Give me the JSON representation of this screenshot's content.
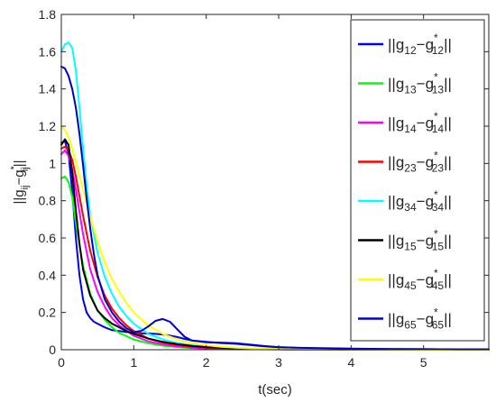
{
  "chart_data": {
    "type": "line",
    "title": "",
    "xlabel": "t(sec)",
    "ylabel": {
      "base": "||g",
      "sub1": "ij",
      "mid": "−g",
      "sup": "*",
      "sub2": "ij",
      "end": "||"
    },
    "xlim": [
      0,
      5.9
    ],
    "ylim": [
      0,
      1.8
    ],
    "xticks": [
      "0",
      "1",
      "2",
      "3",
      "4",
      "5"
    ],
    "yticks": [
      "0",
      "0.2",
      "0.4",
      "0.6",
      "0.8",
      "1",
      "1.2",
      "1.4",
      "1.6",
      "1.8"
    ],
    "grid": false,
    "legend_position": "top-right",
    "series": [
      {
        "name": "||g12−g*12||",
        "label_parts": {
          "a": "12",
          "b": "12"
        },
        "color": "#0000ff",
        "x": [
          0,
          0.05,
          0.1,
          0.15,
          0.2,
          0.25,
          0.3,
          0.35,
          0.4,
          0.45,
          0.5,
          0.6,
          0.7,
          0.8,
          0.9,
          1.0,
          1.1,
          1.2,
          1.3,
          1.4,
          1.5,
          1.6,
          1.7,
          1.8,
          2.0,
          2.2,
          2.4,
          2.6,
          2.8,
          3.0,
          3.3,
          3.6,
          4.0,
          4.5,
          5.0,
          5.5,
          5.9
        ],
        "y": [
          1.11,
          1.12,
          1.05,
          0.85,
          0.6,
          0.4,
          0.27,
          0.2,
          0.17,
          0.15,
          0.14,
          0.12,
          0.105,
          0.1,
          0.095,
          0.09,
          0.088,
          0.087,
          0.085,
          0.082,
          0.076,
          0.068,
          0.058,
          0.05,
          0.042,
          0.036,
          0.032,
          0.025,
          0.018,
          0.013,
          0.009,
          0.007,
          0.005,
          0.004,
          0.003,
          0.002,
          0.002
        ]
      },
      {
        "name": "||g13−g*13||",
        "label_parts": {
          "a": "13",
          "b": "13"
        },
        "color": "#00ff00",
        "x": [
          0,
          0.05,
          0.1,
          0.15,
          0.2,
          0.3,
          0.4,
          0.5,
          0.6,
          0.7,
          0.8,
          1.0,
          1.2,
          1.4,
          1.6,
          1.8,
          2.0,
          2.4,
          3.0,
          3.5,
          4.0,
          5.0,
          5.9
        ],
        "y": [
          0.92,
          0.93,
          0.9,
          0.82,
          0.68,
          0.45,
          0.3,
          0.21,
          0.16,
          0.12,
          0.09,
          0.055,
          0.035,
          0.022,
          0.014,
          0.009,
          0.006,
          0.003,
          0.002,
          0.001,
          0.001,
          0.0,
          0.0
        ]
      },
      {
        "name": "||g14−g*14||",
        "label_parts": {
          "a": "14",
          "b": "14"
        },
        "color": "#ff00ff",
        "x": [
          0,
          0.05,
          0.1,
          0.15,
          0.2,
          0.3,
          0.4,
          0.5,
          0.6,
          0.7,
          0.8,
          1.0,
          1.2,
          1.4,
          1.6,
          1.8,
          2.0,
          2.4,
          3.0,
          3.5,
          4.0,
          5.0,
          5.9
        ],
        "y": [
          1.05,
          1.07,
          1.04,
          0.97,
          0.86,
          0.62,
          0.43,
          0.31,
          0.23,
          0.17,
          0.13,
          0.075,
          0.045,
          0.028,
          0.018,
          0.011,
          0.007,
          0.004,
          0.002,
          0.001,
          0.001,
          0.0,
          0.0
        ]
      },
      {
        "name": "||g23−g*23||",
        "label_parts": {
          "a": "23",
          "b": "23"
        },
        "color": "#ff0000",
        "x": [
          0,
          0.05,
          0.1,
          0.15,
          0.2,
          0.3,
          0.4,
          0.5,
          0.6,
          0.7,
          0.8,
          0.9,
          1.0,
          1.2,
          1.4,
          1.6,
          1.8,
          2.0,
          2.4,
          2.8,
          3.2,
          3.6,
          4.0,
          5.0,
          5.9
        ],
        "y": [
          1.08,
          1.09,
          1.07,
          1.02,
          0.93,
          0.72,
          0.53,
          0.39,
          0.29,
          0.22,
          0.17,
          0.13,
          0.1,
          0.06,
          0.038,
          0.025,
          0.017,
          0.011,
          0.006,
          0.003,
          0.002,
          0.001,
          0.001,
          0.0,
          0.0
        ]
      },
      {
        "name": "||g34−g*34||",
        "label_parts": {
          "a": "34",
          "b": "34"
        },
        "color": "#00ffff",
        "x": [
          0,
          0.05,
          0.1,
          0.15,
          0.2,
          0.25,
          0.3,
          0.35,
          0.4,
          0.5,
          0.6,
          0.7,
          0.8,
          0.9,
          1.0,
          1.2,
          1.4,
          1.6,
          1.8,
          2.0,
          2.4,
          2.8,
          3.2,
          3.6,
          4.0,
          5.0,
          5.9
        ],
        "y": [
          1.6,
          1.64,
          1.65,
          1.62,
          1.5,
          1.3,
          1.08,
          0.88,
          0.72,
          0.52,
          0.39,
          0.3,
          0.23,
          0.18,
          0.14,
          0.085,
          0.055,
          0.036,
          0.024,
          0.016,
          0.008,
          0.004,
          0.002,
          0.001,
          0.001,
          0.0,
          0.0
        ]
      },
      {
        "name": "||g15−g*15||",
        "label_parts": {
          "a": "15",
          "b": "15"
        },
        "color": "#000000",
        "x": [
          0,
          0.05,
          0.1,
          0.15,
          0.2,
          0.25,
          0.3,
          0.4,
          0.5,
          0.6,
          0.7,
          0.8,
          0.9,
          1.0,
          1.2,
          1.4,
          1.6,
          1.8,
          2.0,
          2.4,
          2.8,
          3.2,
          3.6,
          4.0,
          5.0,
          5.9
        ],
        "y": [
          1.1,
          1.13,
          1.1,
          0.95,
          0.75,
          0.57,
          0.43,
          0.29,
          0.21,
          0.17,
          0.14,
          0.12,
          0.1,
          0.085,
          0.06,
          0.042,
          0.03,
          0.021,
          0.014,
          0.007,
          0.004,
          0.002,
          0.001,
          0.001,
          0.0,
          0.0
        ]
      },
      {
        "name": "||g45−g*45||",
        "label_parts": {
          "a": "45",
          "b": "45"
        },
        "color": "#ffff00",
        "x": [
          0,
          0.05,
          0.1,
          0.15,
          0.2,
          0.3,
          0.4,
          0.5,
          0.6,
          0.7,
          0.8,
          0.9,
          1.0,
          1.2,
          1.4,
          1.6,
          1.8,
          2.0,
          2.2,
          2.4,
          2.8,
          3.2,
          3.6,
          4.0,
          5.0,
          5.9
        ],
        "y": [
          1.2,
          1.18,
          1.14,
          1.08,
          1.01,
          0.86,
          0.71,
          0.58,
          0.47,
          0.38,
          0.31,
          0.25,
          0.2,
          0.13,
          0.085,
          0.055,
          0.036,
          0.024,
          0.016,
          0.011,
          0.005,
          0.002,
          0.001,
          0.001,
          0.0,
          0.0
        ]
      },
      {
        "name": "||g65−g*65||",
        "label_parts": {
          "a": "65",
          "b": "65"
        },
        "color": "#0000cd",
        "x": [
          0,
          0.05,
          0.1,
          0.15,
          0.2,
          0.25,
          0.3,
          0.35,
          0.4,
          0.45,
          0.5,
          0.6,
          0.7,
          0.8,
          0.9,
          1.0,
          1.1,
          1.2,
          1.3,
          1.4,
          1.5,
          1.6,
          1.7,
          1.8,
          2.0,
          2.2,
          2.4,
          2.6,
          2.8,
          3.0,
          3.3,
          3.6,
          4.0,
          4.5,
          5.0,
          5.5,
          5.9
        ],
        "y": [
          1.52,
          1.51,
          1.47,
          1.4,
          1.3,
          1.16,
          0.99,
          0.81,
          0.65,
          0.51,
          0.4,
          0.27,
          0.2,
          0.15,
          0.115,
          0.095,
          0.1,
          0.125,
          0.155,
          0.165,
          0.15,
          0.11,
          0.07,
          0.05,
          0.04,
          0.038,
          0.035,
          0.028,
          0.02,
          0.014,
          0.01,
          0.008,
          0.006,
          0.004,
          0.003,
          0.002,
          0.002
        ]
      }
    ]
  }
}
